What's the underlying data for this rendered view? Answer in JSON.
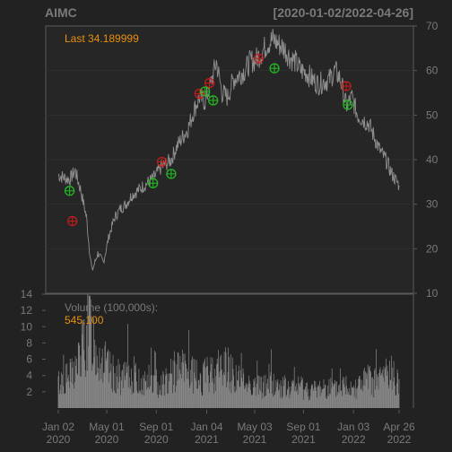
{
  "chart_data": [
    {
      "type": "line",
      "title": "AIMC",
      "date_range": "[2020-01-02/2022-04-26]",
      "last_label": "Last 34.189999",
      "yaxis_side": "right",
      "ylim": [
        10,
        70
      ],
      "yticks": [
        10,
        20,
        30,
        40,
        50,
        60,
        70
      ],
      "grid": true,
      "series": [
        {
          "x": [
            "2020-01-02",
            "2020-01-16",
            "2020-01-30",
            "2020-02-13",
            "2020-02-27",
            "2020-03-12",
            "2020-03-19",
            "2020-03-26",
            "2020-04-09",
            "2020-04-23",
            "2020-05-07",
            "2020-05-21",
            "2020-06-04",
            "2020-06-18",
            "2020-07-02",
            "2020-07-16",
            "2020-07-30",
            "2020-08-13",
            "2020-08-27",
            "2020-09-10",
            "2020-09-24",
            "2020-10-08",
            "2020-10-22",
            "2020-11-05",
            "2020-11-19",
            "2020-12-03",
            "2020-12-17",
            "2020-12-31",
            "2021-01-14",
            "2021-01-28",
            "2021-02-11",
            "2021-02-25",
            "2021-03-11",
            "2021-03-25",
            "2021-04-08",
            "2021-04-22",
            "2021-05-06",
            "2021-05-20",
            "2021-06-03",
            "2021-06-17",
            "2021-07-01",
            "2021-07-15",
            "2021-07-29",
            "2021-08-12",
            "2021-08-26",
            "2021-09-09",
            "2021-09-23",
            "2021-10-07",
            "2021-10-21",
            "2021-11-04",
            "2021-11-18",
            "2021-12-02",
            "2021-12-16",
            "2021-12-30",
            "2022-01-13",
            "2022-01-27",
            "2022-02-10",
            "2022-02-24",
            "2022-03-10",
            "2022-03-24",
            "2022-04-07",
            "2022-04-26"
          ],
          "y": [
            36.5,
            36.0,
            35.5,
            37.5,
            33.0,
            27.0,
            20.0,
            15.0,
            19.0,
            17.0,
            23.0,
            27.0,
            29.0,
            30.0,
            32.0,
            33.0,
            34.0,
            35.0,
            36.0,
            38.0,
            39.0,
            40.0,
            43.0,
            45.0,
            47.0,
            51.0,
            54.0,
            53.0,
            57.0,
            62.0,
            55.0,
            54.0,
            58.0,
            59.0,
            60.0,
            62.0,
            62.5,
            64.0,
            66.0,
            67.0,
            66.0,
            65.0,
            63.0,
            62.0,
            60.0,
            59.5,
            58.0,
            57.0,
            57.5,
            58.0,
            60.0,
            58.0,
            52.0,
            54.0,
            50.0,
            49.0,
            48.0,
            45.0,
            42.0,
            40.0,
            37.0,
            34.19
          ]
        }
      ],
      "signals": {
        "buy": [
          {
            "x": "2020-01-30",
            "y": 33.0
          },
          {
            "x": "2020-08-24",
            "y": 34.7
          },
          {
            "x": "2020-10-08",
            "y": 36.8
          },
          {
            "x": "2020-12-31",
            "y": 55.3
          },
          {
            "x": "2021-01-20",
            "y": 53.3
          },
          {
            "x": "2021-06-21",
            "y": 60.5
          },
          {
            "x": "2021-12-20",
            "y": 52.3
          }
        ],
        "sell": [
          {
            "x": "2020-02-06",
            "y": 26.2
          },
          {
            "x": "2020-09-15",
            "y": 39.5
          },
          {
            "x": "2020-12-17",
            "y": 54.8
          },
          {
            "x": "2021-01-11",
            "y": 57.2
          },
          {
            "x": "2021-05-13",
            "y": 62.7
          },
          {
            "x": "2021-12-16",
            "y": 56.5
          }
        ]
      },
      "colors": {
        "price": "#8f8f8f",
        "buy": "#22b822",
        "sell": "#c01c1c",
        "last_label": "#e8900e",
        "title": "#7a7a7a"
      }
    },
    {
      "type": "bar",
      "title": "Volume (100,000s):",
      "last_value_label": "545,100",
      "yaxis_side": "left",
      "ylim": [
        0,
        14
      ],
      "yticks": [
        2,
        4,
        6,
        8,
        10,
        12,
        14
      ],
      "approx_bar_count": 580,
      "x_range": [
        "2020-01-02",
        "2022-04-26"
      ],
      "values_profile": [
        3.5,
        4.0,
        4.5,
        6.0,
        9.0,
        11.0,
        8.0,
        6.5,
        5.0,
        4.5,
        4.0,
        4.5,
        4.0,
        3.5,
        4.0,
        3.5,
        3.5,
        4.0,
        5.0,
        5.5,
        5.0,
        4.5,
        4.0,
        4.5,
        5.0,
        5.5,
        6.0,
        5.0,
        4.0,
        3.5,
        3.5,
        3.0,
        3.0,
        3.5,
        3.0,
        3.0,
        2.5,
        3.0,
        3.0,
        2.5,
        2.5,
        3.0,
        3.0,
        2.5,
        3.0,
        3.5,
        3.0,
        3.5,
        4.0,
        3.5,
        4.0,
        5.0,
        4.5,
        4.0
      ],
      "peak": {
        "x": "2020-03-20",
        "y": 13.8
      },
      "colors": {
        "bar": "#8a8a8a",
        "label": "#7a7a7a",
        "last_label": "#e8900e"
      }
    }
  ],
  "x_axis": {
    "ticks": [
      {
        "date": "2020-01-02",
        "label": "Jan 02",
        "year": "2020"
      },
      {
        "date": "2020-05-01",
        "label": "May 01",
        "year": "2020"
      },
      {
        "date": "2020-09-01",
        "label": "Sep 01",
        "year": "2020"
      },
      {
        "date": "2021-01-04",
        "label": "Jan 04",
        "year": "2021"
      },
      {
        "date": "2021-05-03",
        "label": "May 03",
        "year": "2021"
      },
      {
        "date": "2021-09-01",
        "label": "Sep 01",
        "year": "2021"
      },
      {
        "date": "2022-01-03",
        "label": "Jan 03",
        "year": "2022"
      },
      {
        "date": "2022-04-26",
        "label": "Apr 26",
        "year": "2022"
      }
    ]
  }
}
